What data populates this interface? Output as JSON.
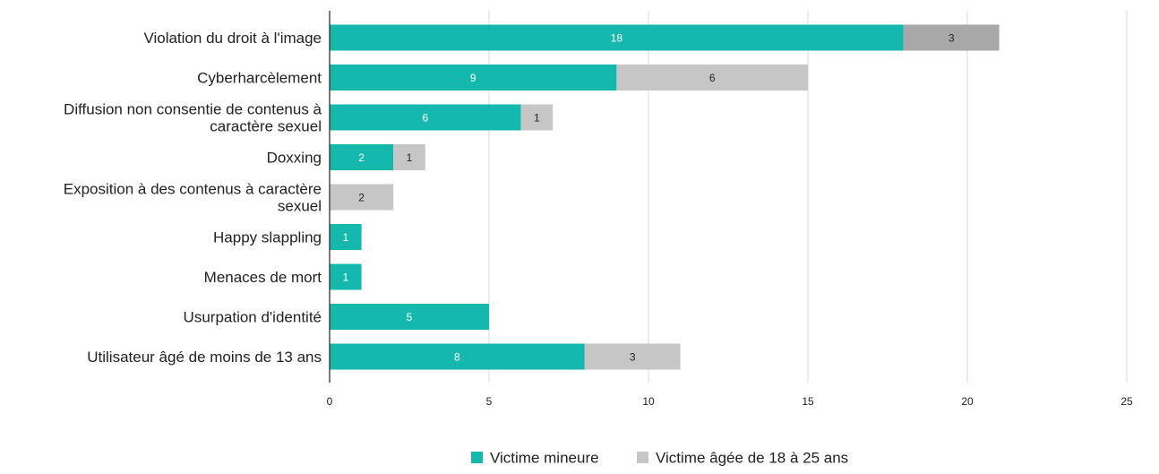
{
  "chart_data": {
    "type": "bar",
    "orientation": "horizontal",
    "stacked": true,
    "title": "",
    "xlabel": "",
    "ylabel": "",
    "xlim": [
      0,
      25
    ],
    "xticks": [
      0,
      5,
      10,
      15,
      20,
      25
    ],
    "grid": "vertical",
    "legend_position": "bottom-center",
    "categories": [
      [
        "Violation du droit à l'image"
      ],
      [
        "Cyberharcèlement"
      ],
      [
        "Diffusion non consentie de contenus à",
        "caractère sexuel"
      ],
      [
        "Doxxing"
      ],
      [
        "Exposition à des contenus à caractère",
        "sexuel"
      ],
      [
        "Happy slappling"
      ],
      [
        "Menaces de mort"
      ],
      [
        "Usurpation d'identité"
      ],
      [
        "Utilisateur âgé de moins de 13 ans"
      ]
    ],
    "series": [
      {
        "name": "Victime mineure",
        "color": "#14b8ad",
        "label_color": "#ffffff",
        "values": [
          18,
          9,
          6,
          2,
          0,
          1,
          1,
          5,
          8
        ]
      },
      {
        "name": "Victime âgée de 18 à 25 ans",
        "color": "#c6c6c6",
        "label_color": "#222222",
        "values": [
          3,
          6,
          1,
          1,
          2,
          0,
          0,
          0,
          3
        ]
      }
    ],
    "highlight": {
      "category_index": 0,
      "series_index": 1,
      "color": "#a8a8a8"
    }
  }
}
